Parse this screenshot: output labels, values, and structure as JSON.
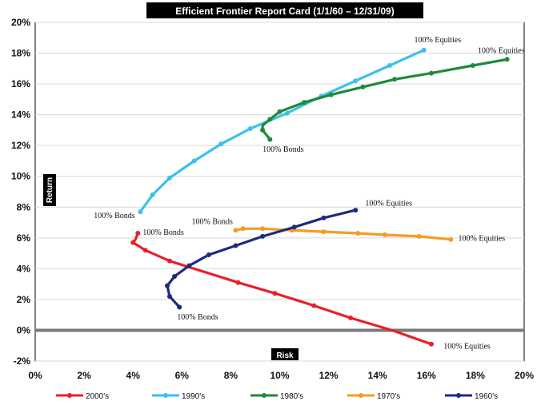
{
  "chart_data": {
    "type": "line",
    "title": "Efficient Frontier Report Card (1/1/60 – 12/31/09)",
    "xlabel": "Risk",
    "ylabel": "Return",
    "xlim": [
      0,
      20
    ],
    "ylim": [
      -2,
      20
    ],
    "x_ticks": [
      "0%",
      "2%",
      "4%",
      "6%",
      "8%",
      "10%",
      "12%",
      "14%",
      "16%",
      "18%",
      "20%"
    ],
    "y_ticks": [
      "-2%",
      "0%",
      "2%",
      "4%",
      "6%",
      "8%",
      "10%",
      "12%",
      "14%",
      "16%",
      "18%",
      "20%"
    ],
    "grid": "horizontal",
    "legend_position": "bottom",
    "series": [
      {
        "name": "2000's",
        "color": "#e8202a",
        "points": [
          [
            4.2,
            6.3
          ],
          [
            4.1,
            5.9
          ],
          [
            4.0,
            5.7
          ],
          [
            4.5,
            5.2
          ],
          [
            5.5,
            4.5
          ],
          [
            8.3,
            3.1
          ],
          [
            9.8,
            2.4
          ],
          [
            11.4,
            1.6
          ],
          [
            12.9,
            0.8
          ],
          [
            14.6,
            0.0
          ],
          [
            16.2,
            -0.9
          ]
        ],
        "markers": [
          [
            4.2,
            6.3
          ],
          [
            4.0,
            5.7
          ],
          [
            4.5,
            5.2
          ],
          [
            5.5,
            4.5
          ],
          [
            8.3,
            3.1
          ],
          [
            9.8,
            2.4
          ],
          [
            11.4,
            1.6
          ],
          [
            12.9,
            0.8
          ],
          [
            16.2,
            -0.9
          ]
        ]
      },
      {
        "name": "1990's",
        "color": "#3cc0ea",
        "points": [
          [
            4.3,
            7.7
          ],
          [
            4.8,
            8.8
          ],
          [
            5.5,
            9.9
          ],
          [
            6.5,
            11.0
          ],
          [
            7.6,
            12.1
          ],
          [
            8.8,
            13.1
          ],
          [
            10.3,
            14.1
          ],
          [
            11.7,
            15.2
          ],
          [
            13.1,
            16.2
          ],
          [
            14.5,
            17.2
          ],
          [
            15.9,
            18.2
          ]
        ],
        "markers": [
          [
            4.3,
            7.7
          ],
          [
            4.8,
            8.8
          ],
          [
            5.5,
            9.9
          ],
          [
            6.5,
            11.0
          ],
          [
            7.6,
            12.1
          ],
          [
            8.8,
            13.1
          ],
          [
            10.3,
            14.1
          ],
          [
            11.7,
            15.2
          ],
          [
            13.1,
            16.2
          ],
          [
            14.5,
            17.2
          ],
          [
            15.9,
            18.2
          ]
        ]
      },
      {
        "name": "1980's",
        "color": "#1e8a3a",
        "points": [
          [
            9.6,
            12.4
          ],
          [
            9.3,
            13.0
          ],
          [
            9.3,
            13.3
          ],
          [
            9.6,
            13.7
          ],
          [
            10.0,
            14.2
          ],
          [
            11.0,
            14.8
          ],
          [
            12.1,
            15.3
          ],
          [
            13.4,
            15.8
          ],
          [
            14.7,
            16.3
          ],
          [
            16.2,
            16.7
          ],
          [
            17.9,
            17.2
          ],
          [
            19.3,
            17.6
          ]
        ],
        "markers": [
          [
            9.6,
            12.4
          ],
          [
            9.3,
            13.0
          ],
          [
            9.6,
            13.7
          ],
          [
            10.0,
            14.2
          ],
          [
            11.0,
            14.8
          ],
          [
            12.1,
            15.3
          ],
          [
            13.4,
            15.8
          ],
          [
            14.7,
            16.3
          ],
          [
            16.2,
            16.7
          ],
          [
            17.9,
            17.2
          ],
          [
            19.3,
            17.6
          ]
        ]
      },
      {
        "name": "1970's",
        "color": "#f39c24",
        "points": [
          [
            8.2,
            6.5
          ],
          [
            8.5,
            6.6
          ],
          [
            9.3,
            6.6
          ],
          [
            10.5,
            6.5
          ],
          [
            11.8,
            6.4
          ],
          [
            13.2,
            6.3
          ],
          [
            14.3,
            6.2
          ],
          [
            15.7,
            6.1
          ],
          [
            17.0,
            5.9
          ]
        ],
        "markers": [
          [
            8.2,
            6.5
          ],
          [
            8.5,
            6.6
          ],
          [
            9.3,
            6.6
          ],
          [
            10.5,
            6.5
          ],
          [
            11.8,
            6.4
          ],
          [
            13.2,
            6.3
          ],
          [
            14.3,
            6.2
          ],
          [
            15.7,
            6.1
          ],
          [
            17.0,
            5.9
          ]
        ]
      },
      {
        "name": "1960's",
        "color": "#1f2a7e",
        "points": [
          [
            5.9,
            1.5
          ],
          [
            5.5,
            2.2
          ],
          [
            5.4,
            2.9
          ],
          [
            5.7,
            3.5
          ],
          [
            6.3,
            4.2
          ],
          [
            7.1,
            4.9
          ],
          [
            8.2,
            5.5
          ],
          [
            9.3,
            6.1
          ],
          [
            10.6,
            6.7
          ],
          [
            11.8,
            7.3
          ],
          [
            13.1,
            7.8
          ]
        ],
        "markers": [
          [
            5.9,
            1.5
          ],
          [
            5.5,
            2.2
          ],
          [
            5.4,
            2.9
          ],
          [
            5.7,
            3.5
          ],
          [
            6.3,
            4.2
          ],
          [
            7.1,
            4.9
          ],
          [
            8.2,
            5.5
          ],
          [
            9.3,
            6.1
          ],
          [
            10.6,
            6.7
          ],
          [
            11.8,
            7.3
          ],
          [
            13.1,
            7.8
          ]
        ]
      }
    ],
    "annotations": [
      {
        "text": "100% Equities",
        "x": 15.5,
        "y": 18.7
      },
      {
        "text": "100% Equities",
        "x": 18.1,
        "y": 18.0
      },
      {
        "text": "100% Bonds",
        "x": 9.3,
        "y": 11.6
      },
      {
        "text": "100% Bonds",
        "x": 2.4,
        "y": 7.3
      },
      {
        "text": "100% Equities",
        "x": 13.5,
        "y": 8.1
      },
      {
        "text": "100% Bonds",
        "x": 6.4,
        "y": 6.9
      },
      {
        "text": "100% Bonds",
        "x": 4.4,
        "y": 6.2
      },
      {
        "text": "100% Equities",
        "x": 17.3,
        "y": 5.8
      },
      {
        "text": "100% Bonds",
        "x": 5.8,
        "y": 0.7
      },
      {
        "text": "100% Equities",
        "x": 16.7,
        "y": -1.2
      }
    ]
  }
}
